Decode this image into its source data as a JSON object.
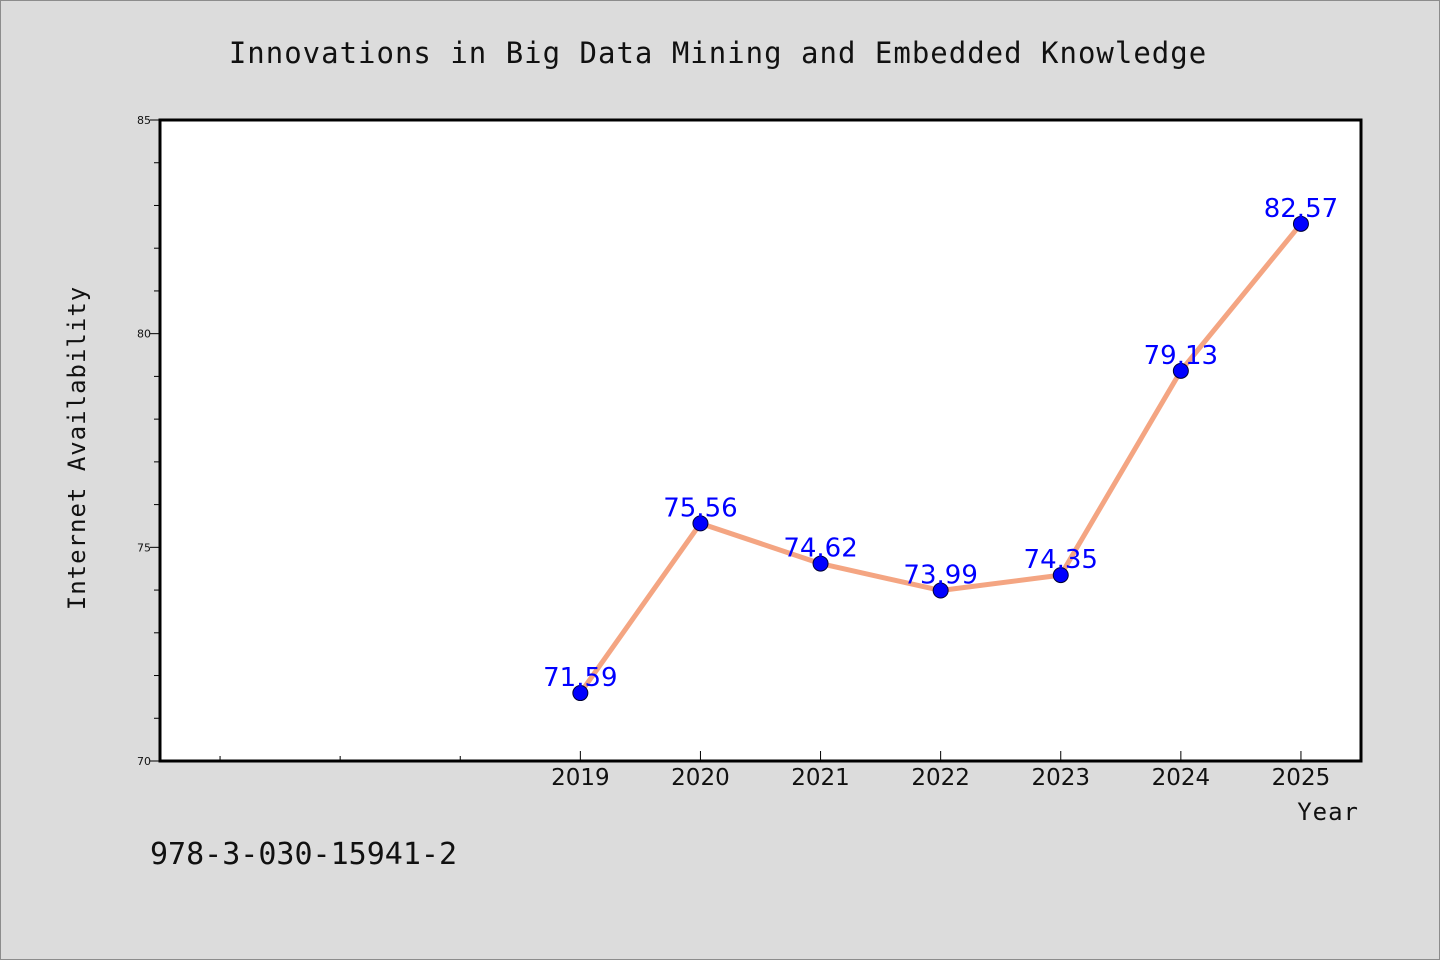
{
  "chart_data": {
    "type": "line",
    "title": "Innovations in Big Data Mining and Embedded Knowledge",
    "xlabel": "Year",
    "ylabel": "Internet Availability",
    "x": [
      2019,
      2020,
      2021,
      2022,
      2023,
      2024,
      2025
    ],
    "x_tick_labels": [
      "2019",
      "2020",
      "2021",
      "2022",
      "2023",
      "2024",
      "2025"
    ],
    "xlim": [
      2015.5,
      2025.5
    ],
    "series": [
      {
        "values": [
          71.59,
          75.56,
          74.62,
          73.99,
          74.35,
          79.13,
          82.57
        ],
        "data_labels": [
          "71.59",
          "75.56",
          "74.62",
          "73.99",
          "74.35",
          "79.13",
          "82.57"
        ]
      }
    ],
    "ylim": [
      70,
      85
    ],
    "y_ticks": [
      70,
      75,
      80,
      85
    ],
    "y_tick_labels": [
      "70",
      "75",
      "80",
      "85"
    ],
    "y_minor_step": 1,
    "x_minor_ticks": [
      2016,
      2017,
      2018
    ],
    "grid": false,
    "legend": "none",
    "colors": {
      "line": "#f4a582",
      "marker": "#0000ff",
      "data_label": "#0000ff",
      "background": "#dcdcdc",
      "plot_area": "#ffffff"
    }
  },
  "footer": {
    "isbn": "978-3-030-15941-2"
  }
}
